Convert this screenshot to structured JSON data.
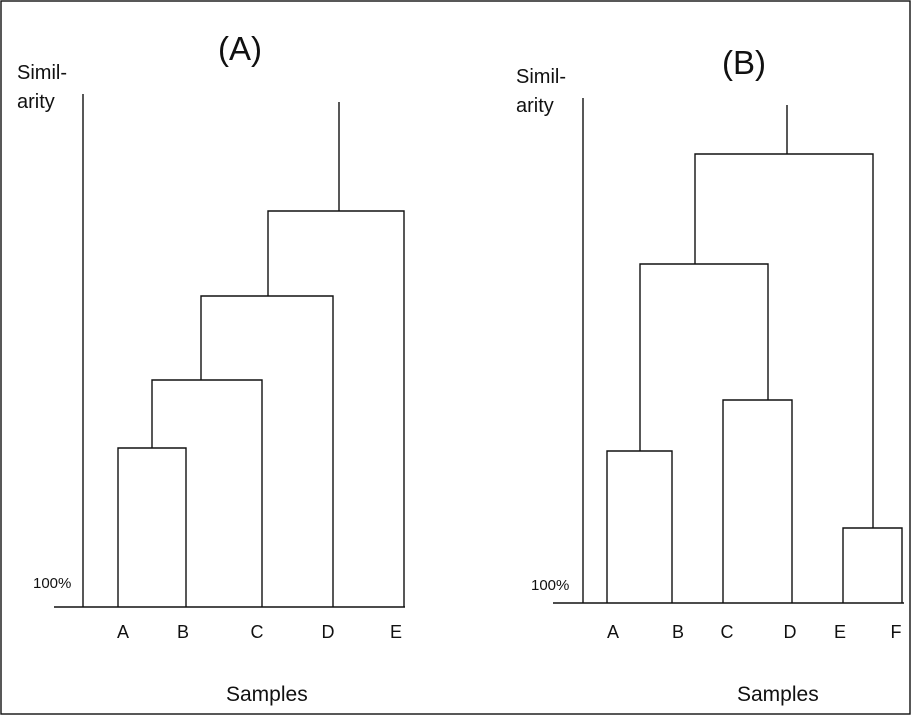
{
  "panels": [
    {
      "id": "A",
      "title": "(A)",
      "ylabel_line1": "Simil-",
      "ylabel_line2": "arity",
      "baseline_label": "100%",
      "xlabel": "Samples",
      "leaves": [
        "A",
        "B",
        "C",
        "D",
        "E"
      ]
    },
    {
      "id": "B",
      "title": "(B)",
      "ylabel_line1": "Simil-",
      "ylabel_line2": "arity",
      "baseline_label": "100%",
      "xlabel": "Samples",
      "leaves": [
        "A",
        "B",
        "C",
        "D",
        "E",
        "F"
      ]
    }
  ]
}
